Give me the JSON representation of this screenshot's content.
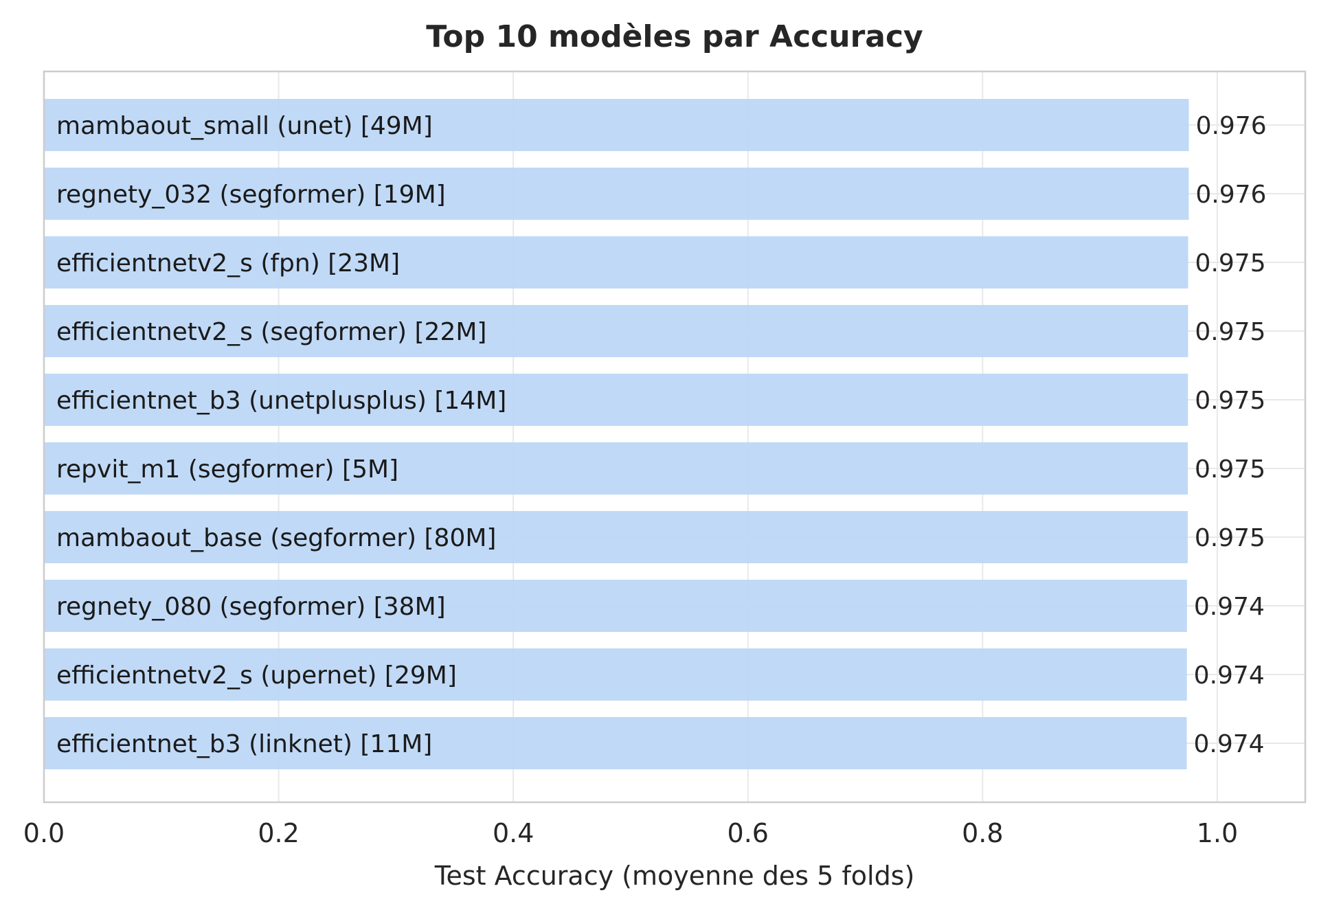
{
  "chart_data": {
    "type": "bar",
    "orientation": "horizontal",
    "title": "Top 10 modèles par Accuracy",
    "xlabel": "Test Accuracy (moyenne des 5 folds)",
    "ylabel": "",
    "xlim": [
      0,
      1.075
    ],
    "xticks": [
      0.0,
      0.2,
      0.4,
      0.6,
      0.8,
      1.0
    ],
    "grid": true,
    "bar_color": "#bdd7f5",
    "categories": [
      "mambaout_small (unet) [49M]",
      "regnety_032 (segformer) [19M]",
      "efficientnetv2_s (fpn) [23M]",
      "efficientnetv2_s (segformer) [22M]",
      "efficientnet_b3 (unetplusplus) [14M]",
      "repvit_m1 (segformer) [5M]",
      "mambaout_base (segformer) [80M]",
      "regnety_080 (segformer) [38M]",
      "efficientnetv2_s (upernet) [29M]",
      "efficientnet_b3 (linknet) [11M]"
    ],
    "values": [
      0.9758,
      0.9757,
      0.9752,
      0.9751,
      0.975,
      0.9749,
      0.9748,
      0.9742,
      0.9741,
      0.974
    ],
    "value_labels": [
      "0.976",
      "0.976",
      "0.975",
      "0.975",
      "0.975",
      "0.975",
      "0.975",
      "0.974",
      "0.974",
      "0.974"
    ]
  }
}
